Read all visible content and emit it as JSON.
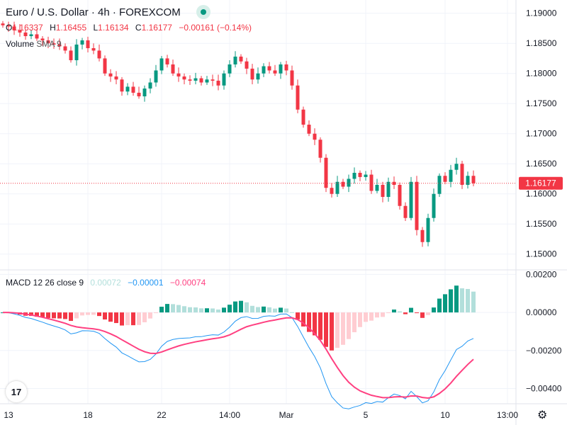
{
  "header": {
    "title": "Euro / U.S. Dollar · 4h · FOREXCOM",
    "status_color": "#089981"
  },
  "ohlc": {
    "o_label": "O",
    "o": "1.16337",
    "h_label": "H",
    "h": "1.16455",
    "l_label": "L",
    "l": "1.16134",
    "c_label": "C",
    "c": "1.16177",
    "change": "−0.00161 (−0.14%)"
  },
  "volume": {
    "label": "Volume",
    "sma": "SMA 9"
  },
  "macd": {
    "label": "MACD 12 26 close 9",
    "hist": "0.00072",
    "macd": "−0.00001",
    "signal": "−0.00074"
  },
  "colors": {
    "up": "#089981",
    "down": "#f23645",
    "hist_up_light": "#b2dfdb",
    "hist_down_light": "#ffcdd2",
    "macd": "#2196f3",
    "signal": "#ff4081"
  },
  "chart_data": {
    "type": "candlestick",
    "symbol": "EURUSD 4h",
    "closes": [
      1.188,
      1.1878,
      1.1872,
      1.1868,
      1.1862,
      1.1865,
      1.1858,
      1.1855,
      1.185,
      1.1848,
      1.1845,
      1.1838,
      1.1822,
      1.1848,
      1.1855,
      1.1842,
      1.1838,
      1.1825,
      1.18,
      1.1795,
      1.179,
      1.177,
      1.1778,
      1.1768,
      1.1762,
      1.1775,
      1.1785,
      1.1805,
      1.1825,
      1.1815,
      1.18,
      1.1795,
      1.179,
      1.1788,
      1.1792,
      1.1785,
      1.179,
      1.1788,
      1.178,
      1.18,
      1.1815,
      1.1828,
      1.182,
      1.1808,
      1.179,
      1.18,
      1.1812,
      1.1805,
      1.18,
      1.1815,
      1.1805,
      1.178,
      1.174,
      1.1715,
      1.17,
      1.169,
      1.166,
      1.161,
      1.16,
      1.162,
      1.1612,
      1.1625,
      1.1635,
      1.1628,
      1.1632,
      1.1605,
      1.1615,
      1.1595,
      1.162,
      1.1615,
      1.158,
      1.156,
      1.162,
      1.154,
      1.152,
      1.156,
      1.16,
      1.163,
      1.162,
      1.164,
      1.165,
      1.1615,
      1.163,
      1.16177
    ],
    "price_ticks": [
      "1.19000",
      "1.18500",
      "1.18000",
      "1.17500",
      "1.17000",
      "1.16500",
      "1.16000",
      "1.15500",
      "1.15000"
    ],
    "price_range": [
      1.1475,
      1.1922
    ],
    "current_price": "1.16177",
    "macd_ticks": [
      "0.00200",
      "0.00000",
      "−0.00200",
      "−0.00400"
    ],
    "macd_range": [
      -0.0048,
      0.0022
    ],
    "x_ticks": [
      "13",
      "18",
      "22",
      "14:00",
      "Mar",
      "5",
      "10",
      "13:00"
    ],
    "x_tick_index": [
      1,
      15,
      28,
      40,
      50,
      64,
      78,
      89
    ]
  }
}
